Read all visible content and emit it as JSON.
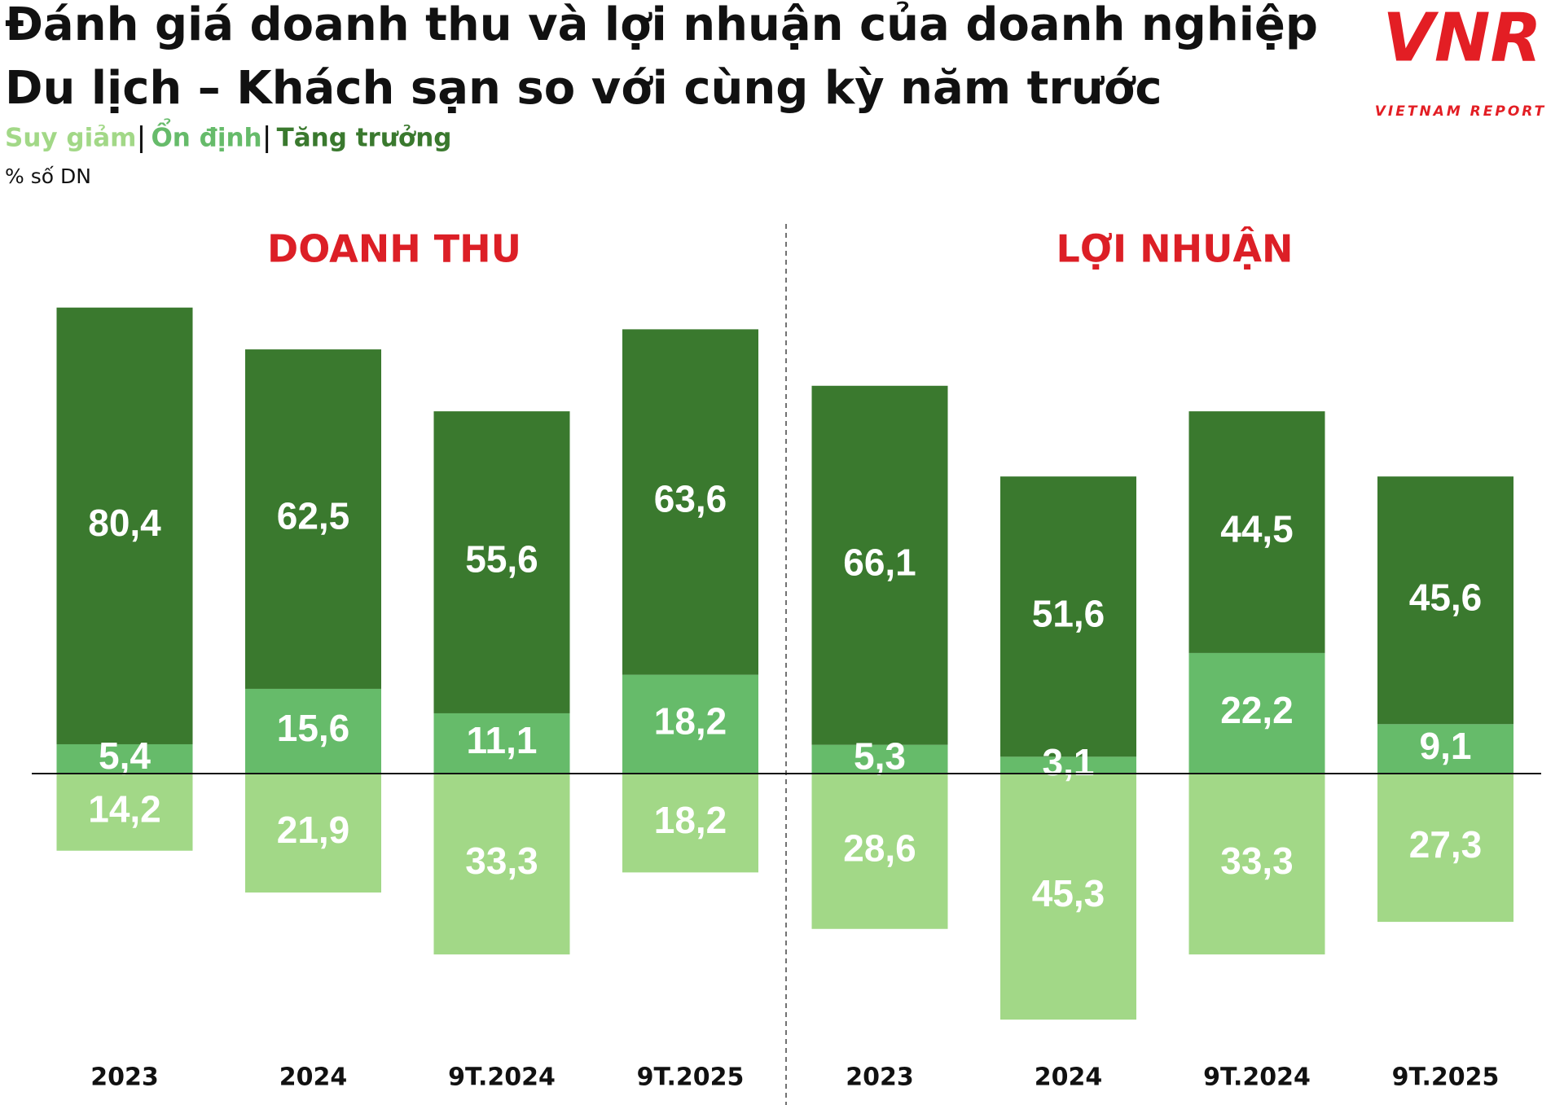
{
  "title": [
    "Đánh giá doanh thu và lợi nhuận của doanh nghiệp",
    "Du lịch – Khách sạn so với cùng kỳ năm trước"
  ],
  "unit": "% số DN",
  "logo": {
    "mark": "VNR",
    "text": "VIETNAM REPORT"
  },
  "chart_data": [
    {
      "type": "bar",
      "title": "DOANH THU",
      "categories": [
        "2023",
        "2024",
        "9T.2024",
        "9T.2025"
      ],
      "series": [
        {
          "name": "Suy giảm",
          "color": "#a2d887",
          "values": [
            14.2,
            21.9,
            33.3,
            18.2
          ],
          "value_labels": [
            "14,2",
            "21,9",
            "33,3",
            "18,2"
          ]
        },
        {
          "name": "Ổn định",
          "color": "#66bb6a",
          "values": [
            5.4,
            15.6,
            11.1,
            18.2
          ],
          "value_labels": [
            "5,4",
            "15,6",
            "11,1",
            "18,2"
          ]
        },
        {
          "name": "Tăng trưởng",
          "color": "#3a792e",
          "values": [
            80.4,
            62.5,
            55.6,
            63.6
          ],
          "value_labels": [
            "80,4",
            "62,5",
            "55,6",
            "63,6"
          ]
        }
      ]
    },
    {
      "type": "bar",
      "title": "LỢI NHUẬN",
      "categories": [
        "2023",
        "2024",
        "9T.2024",
        "9T.2025"
      ],
      "series": [
        {
          "name": "Suy giảm",
          "color": "#a2d887",
          "values": [
            28.6,
            45.3,
            33.3,
            27.3
          ],
          "value_labels": [
            "28,6",
            "45,3",
            "33,3",
            "27,3"
          ]
        },
        {
          "name": "Ổn định",
          "color": "#66bb6a",
          "values": [
            5.3,
            3.1,
            22.2,
            9.1
          ],
          "value_labels": [
            "5,3",
            "3,1",
            "22,2",
            "9,1"
          ]
        },
        {
          "name": "Tăng trưởng",
          "color": "#3a792e",
          "values": [
            66.1,
            51.6,
            44.5,
            45.6
          ],
          "value_labels": [
            "66,1",
            "51,6",
            "44,5",
            "45,6"
          ]
        }
      ]
    }
  ]
}
